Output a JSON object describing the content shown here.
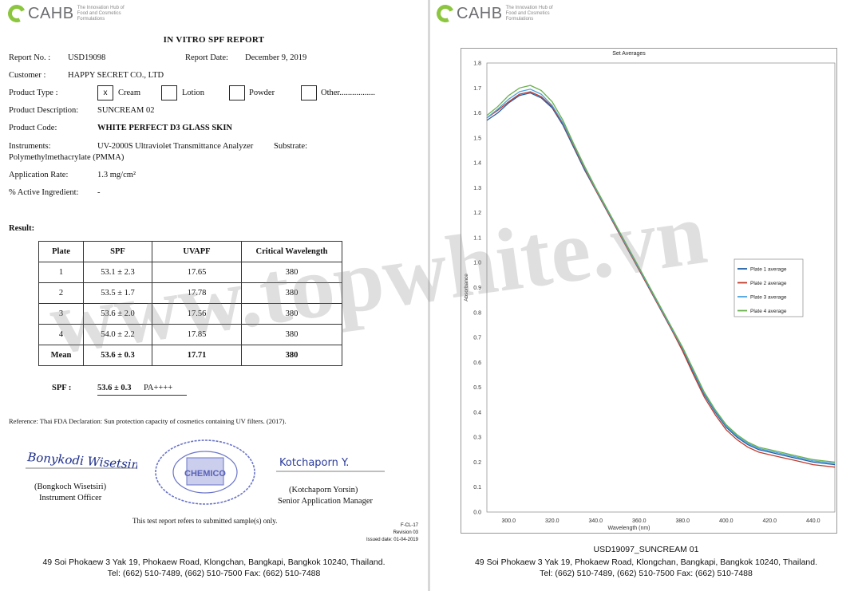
{
  "logo": {
    "text": "CAHB",
    "tagline": "The Innovation Hub of Food and Cosmetics Formulations"
  },
  "report": {
    "title": "IN VITRO SPF REPORT",
    "report_no_label": "Report No. :",
    "report_no": "USD19098",
    "report_date_label": "Report Date:",
    "report_date": "December 9, 2019",
    "customer_label": "Customer :",
    "customer": "HAPPY SECRET CO., LTD",
    "product_type_label": "Product Type :",
    "product_types": [
      {
        "mark": "x",
        "label": "Cream"
      },
      {
        "mark": "",
        "label": "Lotion"
      },
      {
        "mark": "",
        "label": "Powder"
      },
      {
        "mark": "",
        "label": "Other................."
      }
    ],
    "product_description_label": "Product Description:",
    "product_description": "SUNCREAM 02",
    "product_code_label": "Product Code:",
    "product_code": "WHITE PERFECT D3 GLASS SKIN",
    "instruments_label": "Instruments:",
    "instruments": "UV-2000S Ultraviolet Transmittance Analyzer",
    "substrate_label": "Substrate:",
    "substrate": "Polymethylmethacrylate (PMMA)",
    "application_rate_label": "Application Rate:",
    "application_rate": "1.3 mg/cm²",
    "active_ingredient_label": "% Active Ingredient:",
    "active_ingredient": "-",
    "result_label": "Result:",
    "table": {
      "headers": [
        "Plate",
        "SPF",
        "UVAPF",
        "Critical Wavelength"
      ],
      "rows": [
        [
          "1",
          "53.1 ± 2.3",
          "17.65",
          "380"
        ],
        [
          "2",
          "53.5 ± 1.7",
          "17.78",
          "380"
        ],
        [
          "3",
          "53.6 ± 2.0",
          "17.56",
          "380"
        ],
        [
          "4",
          "54.0 ± 2.2",
          "17.85",
          "380"
        ]
      ],
      "mean": [
        "Mean",
        "53.6 ± 0.3",
        "17.71",
        "380"
      ]
    },
    "spf_label": "SPF :",
    "spf_value": "53.6 ± 0.3",
    "pa_value": "PA++++",
    "reference": "Reference: Thai FDA Declaration: Sun protection capacity of cosmetics containing UV filters. (2017).",
    "signer1": {
      "signature": "Bonykodi Wisetsin",
      "name": "(Bongkoch Wisetsiri)",
      "title": "Instrument Officer"
    },
    "signer2": {
      "signature": "Kotchaporn Y.",
      "name": "(Kotchaporn Yorsin)",
      "title": "Senior Application Manager"
    },
    "stamp_text": "CHEMICO",
    "disclaimer": "This test report refers to submitted sample(s) only.",
    "form_code": "F-CL-17",
    "revision": "Revision 03",
    "issued": "Issued date: 01-04-2019"
  },
  "footer": {
    "address": "49 Soi Phokaew 3 Yak 19, Phokaew Road, Klongchan, Bangkapi, Bangkok 10240, Thailand.",
    "phone": "Tel: (662) 510-7489, (662) 510-7500  Fax: (662) 510-7488"
  },
  "watermark": "www.topwhite.vn",
  "chart_caption": "USD19097_SUNCREAM 01",
  "chart_data": {
    "type": "line",
    "title": "Set Averages",
    "xlabel": "Wavelength (nm)",
    "ylabel": "Absorbance",
    "xlim": [
      290,
      450
    ],
    "ylim": [
      0.0,
      1.8
    ],
    "xticks": [
      "300.0",
      "320.0",
      "340.0",
      "360.0",
      "380.0",
      "400.0",
      "420.0",
      "440.0"
    ],
    "yticks": [
      "0.0",
      "0.1",
      "0.2",
      "0.3",
      "0.4",
      "0.5",
      "0.6",
      "0.7",
      "0.8",
      "0.9",
      "1.0",
      "1.1",
      "1.2",
      "1.3",
      "1.4",
      "1.5",
      "1.6",
      "1.7",
      "1.8"
    ],
    "legend_position": "right",
    "x": [
      290,
      295,
      300,
      305,
      310,
      315,
      320,
      325,
      330,
      335,
      340,
      345,
      350,
      355,
      360,
      365,
      370,
      375,
      380,
      385,
      390,
      395,
      400,
      405,
      410,
      415,
      420,
      425,
      430,
      435,
      440,
      445,
      450
    ],
    "series": [
      {
        "name": "Plate 1 average",
        "color": "#1f5fa8",
        "values": [
          1.57,
          1.6,
          1.64,
          1.67,
          1.68,
          1.66,
          1.62,
          1.55,
          1.46,
          1.37,
          1.29,
          1.21,
          1.13,
          1.05,
          0.97,
          0.89,
          0.81,
          0.73,
          0.65,
          0.56,
          0.47,
          0.4,
          0.34,
          0.3,
          0.27,
          0.25,
          0.24,
          0.23,
          0.22,
          0.21,
          0.2,
          0.195,
          0.19
        ]
      },
      {
        "name": "Plate 2 average",
        "color": "#c0392b",
        "values": [
          1.58,
          1.61,
          1.645,
          1.675,
          1.685,
          1.665,
          1.625,
          1.555,
          1.465,
          1.375,
          1.29,
          1.21,
          1.13,
          1.05,
          0.97,
          0.89,
          0.81,
          0.73,
          0.645,
          0.55,
          0.46,
          0.39,
          0.33,
          0.29,
          0.26,
          0.24,
          0.23,
          0.22,
          0.21,
          0.2,
          0.19,
          0.185,
          0.18
        ]
      },
      {
        "name": "Plate 3 average",
        "color": "#4aa3df",
        "values": [
          1.58,
          1.615,
          1.655,
          1.685,
          1.695,
          1.675,
          1.63,
          1.56,
          1.47,
          1.38,
          1.295,
          1.215,
          1.135,
          1.055,
          0.975,
          0.895,
          0.815,
          0.735,
          0.655,
          0.565,
          0.475,
          0.405,
          0.345,
          0.305,
          0.275,
          0.255,
          0.245,
          0.235,
          0.225,
          0.215,
          0.205,
          0.2,
          0.195
        ]
      },
      {
        "name": "Plate 4 average",
        "color": "#6ab04c",
        "values": [
          1.59,
          1.625,
          1.67,
          1.7,
          1.71,
          1.69,
          1.645,
          1.57,
          1.475,
          1.385,
          1.3,
          1.22,
          1.14,
          1.06,
          0.98,
          0.9,
          0.82,
          0.74,
          0.66,
          0.57,
          0.48,
          0.41,
          0.35,
          0.31,
          0.28,
          0.26,
          0.25,
          0.24,
          0.23,
          0.22,
          0.21,
          0.205,
          0.2
        ]
      }
    ]
  }
}
